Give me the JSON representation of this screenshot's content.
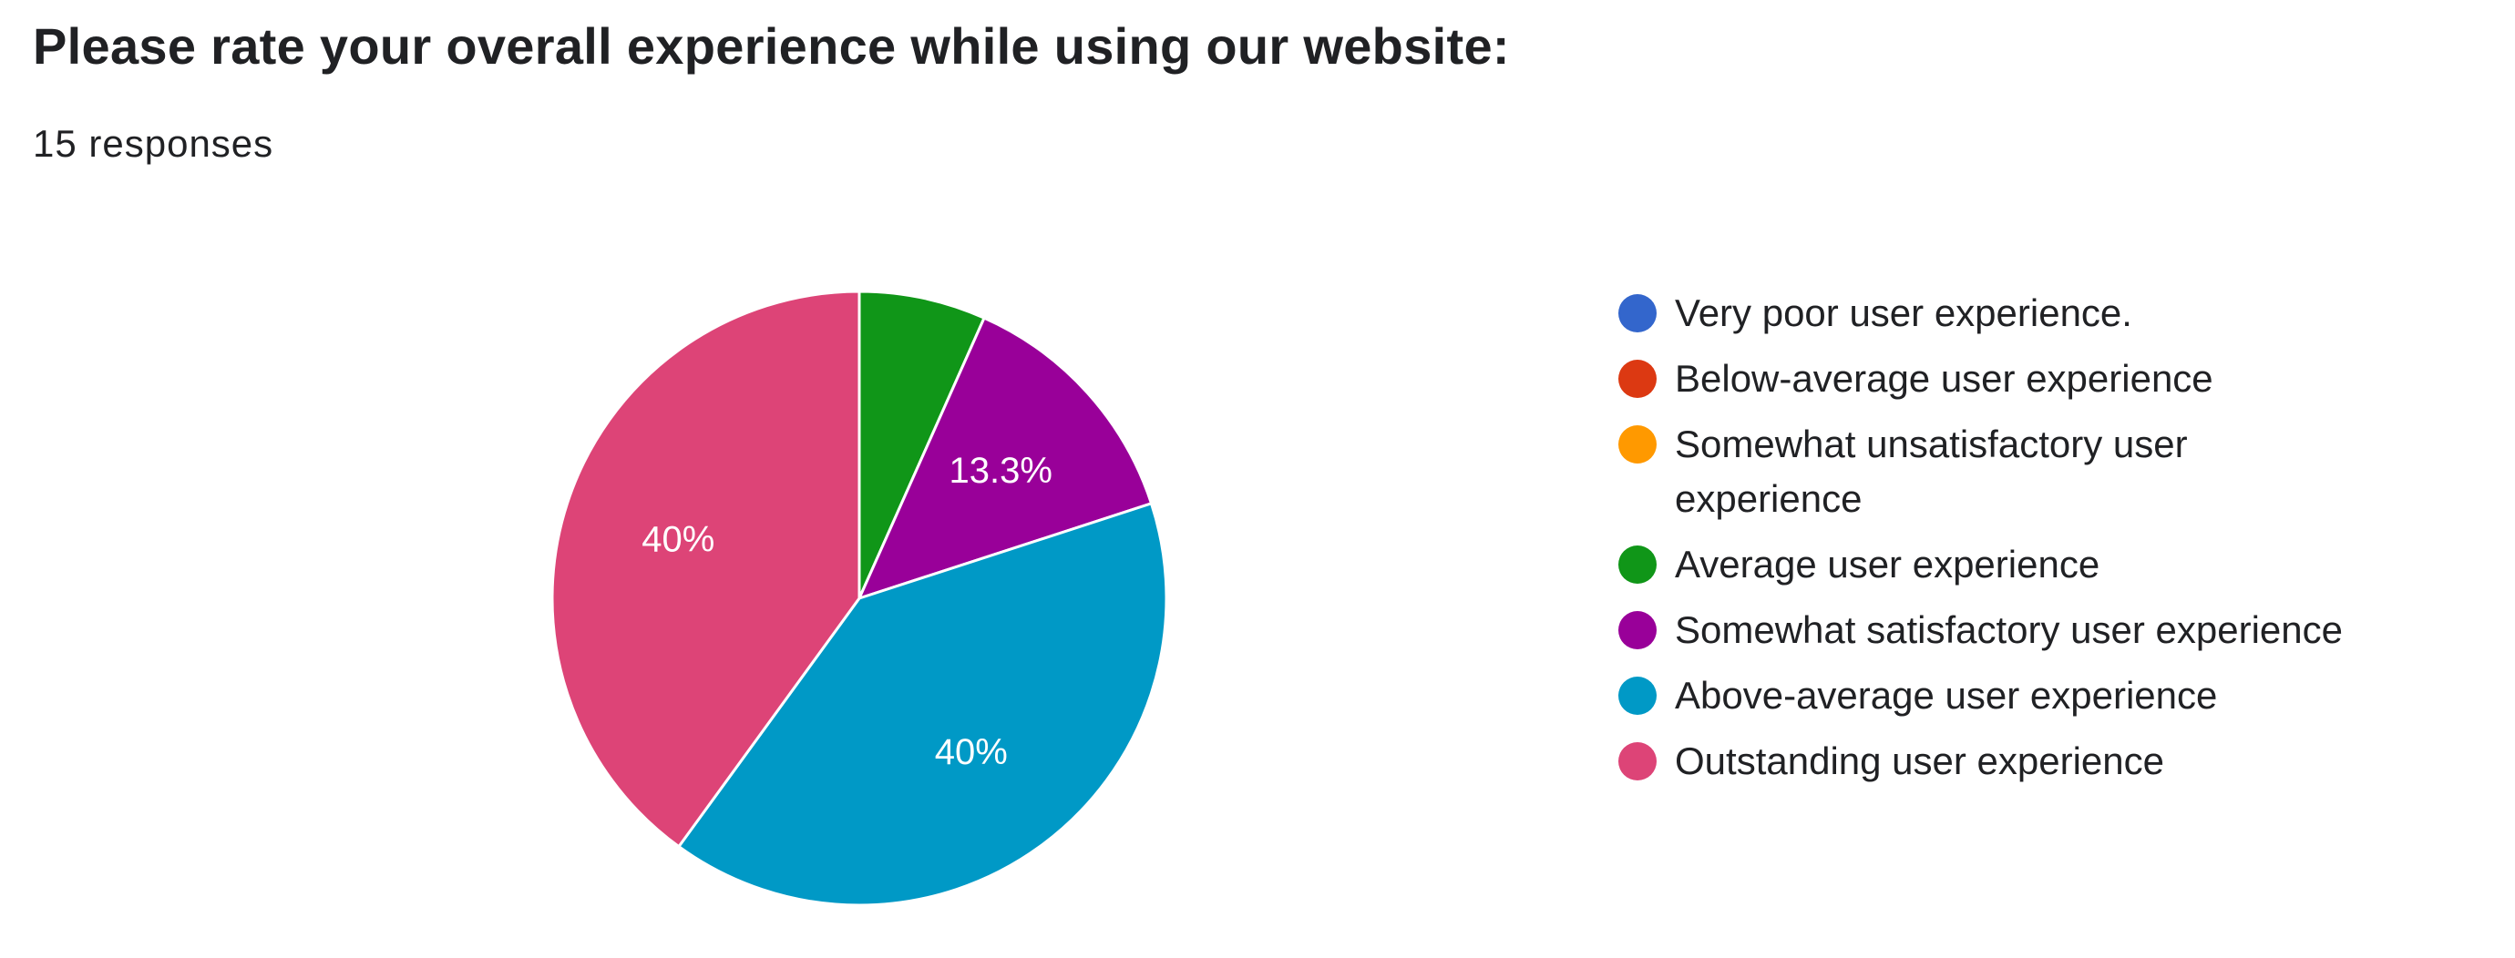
{
  "chart_data": {
    "type": "pie",
    "title": "Please rate your overall experience while using our website:",
    "subtitle": "15 responses",
    "start_angle_deg": 90,
    "direction": "clockwise",
    "legend_position": "right",
    "slices": [
      {
        "label": "Very poor user experience.",
        "value": 0,
        "percent_label": "",
        "color": "#3366cc"
      },
      {
        "label": "Below-average user experience",
        "value": 0,
        "percent_label": "",
        "color": "#dc3912"
      },
      {
        "label": "Somewhat unsatisfactory user experience",
        "value": 0,
        "percent_label": "",
        "color": "#ff9900"
      },
      {
        "label": "Average user experience",
        "value": 1,
        "percent_label": "",
        "color": "#109618"
      },
      {
        "label": "Somewhat satisfactory user experience",
        "value": 2,
        "percent_label": "13.3%",
        "color": "#990099"
      },
      {
        "label": "Above-average user experience",
        "value": 6,
        "percent_label": "40%",
        "color": "#0099c6"
      },
      {
        "label": "Outstanding user experience",
        "value": 6,
        "percent_label": "40%",
        "color": "#dd4477"
      }
    ]
  }
}
